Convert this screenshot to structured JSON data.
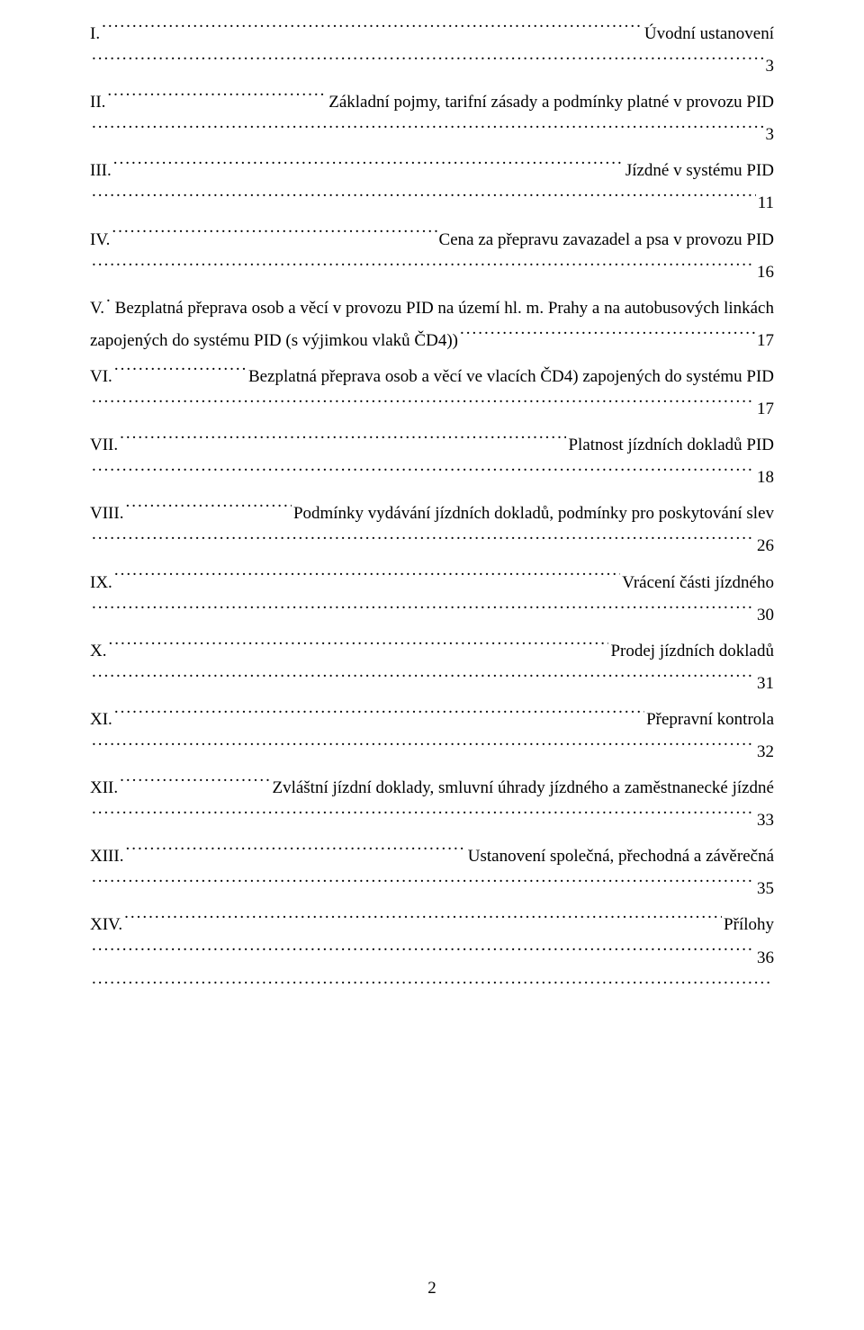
{
  "font": {
    "family": "Times New Roman",
    "size_pt": 14,
    "color": "#000000",
    "background": "#ffffff"
  },
  "page_number": "2",
  "toc": [
    {
      "num": "I.",
      "title": "Úvodní ustanovení",
      "page": "3"
    },
    {
      "num": "II.",
      "title": "Základní pojmy,  tarifní zásady a podmínky platné v provozu PID",
      "page": "3"
    },
    {
      "num": "III.",
      "title": "Jízdné v systému PID",
      "page": "11"
    },
    {
      "num": "IV.",
      "title": "Cena za přepravu zavazadel a psa v provozu PID",
      "page": "16"
    },
    {
      "num": "V.",
      "title_part1": "Bezplatná přeprava osob a věcí v provozu PID na území hl. m. Prahy a na  autobusových linkách",
      "title_part2": "zapojených do systému PID (s výjimkou vlaků ČD4))",
      "page": "17",
      "wrap": true
    },
    {
      "num": "VI.",
      "title": "Bezplatná přeprava osob a věcí ve vlacích ČD4) zapojených do systému PID",
      "page": "17"
    },
    {
      "num": "VII.",
      "title": "Platnost jízdních dokladů PID",
      "page": "18"
    },
    {
      "num": "VIII.",
      "title": "Podmínky vydávání jízdních dokladů, podmínky pro poskytování slev",
      "page": "26"
    },
    {
      "num": "IX.",
      "title": "Vrácení části jízdného",
      "page": "30"
    },
    {
      "num": "X.",
      "title": "Prodej jízdních dokladů",
      "page": "31"
    },
    {
      "num": "XI.",
      "title": "Přepravní kontrola",
      "page": "32"
    },
    {
      "num": "XII.",
      "title": "Zvláštní jízdní doklady, smluvní úhrady jízdného a zaměstnanecké jízdné",
      "page": "33"
    },
    {
      "num": "XIII.",
      "title": "Ustanovení společná, přechodná a závěrečná",
      "page": "35"
    },
    {
      "num": "XIV.",
      "title": "Přílohy",
      "page": "36"
    }
  ]
}
